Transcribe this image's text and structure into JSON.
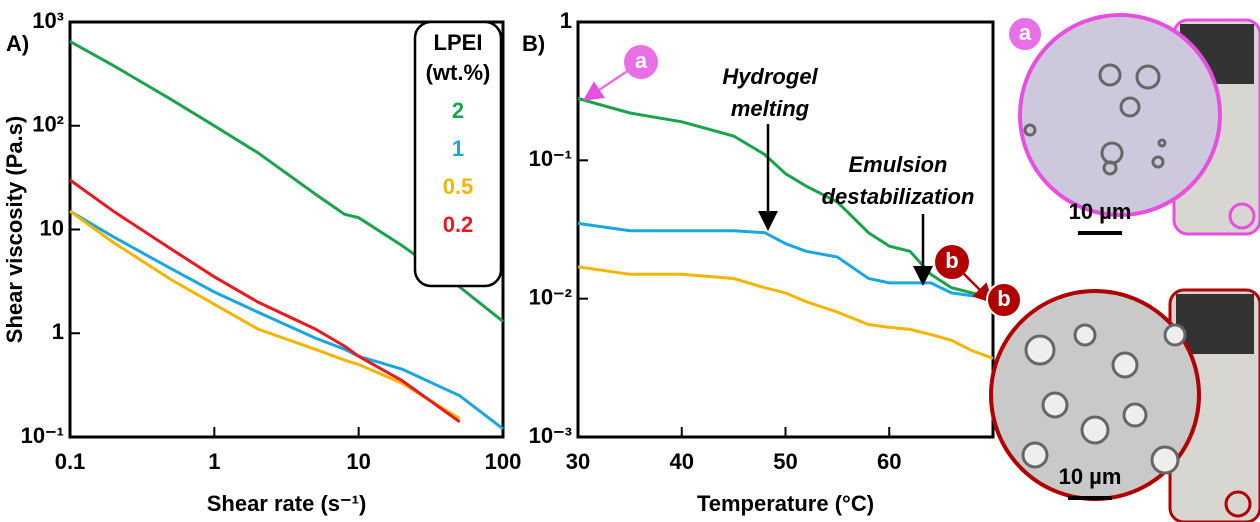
{
  "chart_data": [
    {
      "type": "line",
      "panel_label": "A)",
      "x_label": "Shear rate (s⁻¹)",
      "y_label": "Shear viscosity (Pa.s)",
      "xlog": true,
      "ylog": true,
      "xlim": [
        0.1,
        100
      ],
      "ylim": [
        0.1,
        1000
      ],
      "xticks": [
        0.1,
        1,
        10,
        100
      ],
      "yticks": [
        {
          "value": 1000,
          "label": "10³"
        },
        {
          "value": 100,
          "label": "10²"
        },
        10,
        1,
        {
          "value": 0.1,
          "label": "10⁻¹"
        }
      ],
      "legend_title": [
        "LPEI",
        "(wt.%)"
      ],
      "legend": "top right",
      "x": [
        0.1,
        0.2,
        0.5,
        1,
        2,
        5,
        8,
        10,
        20,
        50,
        100
      ],
      "series": [
        {
          "name": "2",
          "color": "#1aa34a",
          "values": [
            650,
            380,
            180,
            100,
            55,
            22,
            14,
            13,
            7,
            2.8,
            1.3
          ]
        },
        {
          "name": "1",
          "color": "#1aa7e0",
          "values": [
            15,
            8.5,
            4.2,
            2.5,
            1.6,
            0.9,
            0.7,
            0.6,
            0.45,
            0.25,
            0.12
          ]
        },
        {
          "name": "0.5",
          "color": "#f5b400",
          "values": [
            15,
            7.5,
            3.3,
            1.9,
            1.1,
            0.7,
            0.55,
            0.5,
            0.33,
            0.15,
            null
          ]
        },
        {
          "name": "0.2",
          "color": "#e8191f",
          "values": [
            30,
            15,
            6.5,
            3.5,
            2,
            1.1,
            0.75,
            0.6,
            0.35,
            0.14,
            null
          ]
        }
      ]
    },
    {
      "type": "line",
      "panel_label": "B)",
      "x_label": "Temperature (°C)",
      "xlog": false,
      "ylog": true,
      "xlim": [
        30,
        70
      ],
      "ylim": [
        0.001,
        1
      ],
      "xticks": [
        30,
        40,
        50,
        60
      ],
      "yticks": [
        1,
        {
          "value": 0.1,
          "label": "10⁻¹"
        },
        {
          "value": 0.01,
          "label": "10⁻²"
        },
        {
          "value": 0.001,
          "label": "10⁻³"
        }
      ],
      "x": [
        30,
        35,
        40,
        45,
        48,
        50,
        52,
        55,
        58,
        60,
        62,
        64,
        66,
        68,
        70
      ],
      "series": [
        {
          "color": "#1aa34a",
          "values": [
            0.28,
            0.22,
            0.19,
            0.15,
            0.11,
            0.08,
            0.065,
            0.05,
            0.03,
            0.024,
            0.022,
            0.015,
            0.012,
            0.011,
            0.01
          ]
        },
        {
          "color": "#1aa7e0",
          "values": [
            0.035,
            0.031,
            0.031,
            0.031,
            0.03,
            0.025,
            0.022,
            0.02,
            0.014,
            0.013,
            0.013,
            0.013,
            0.011,
            0.0105,
            0.0103
          ]
        },
        {
          "color": "#f5b400",
          "values": [
            0.017,
            0.015,
            0.015,
            0.014,
            0.012,
            0.011,
            0.0095,
            0.008,
            0.0065,
            0.0062,
            0.006,
            0.0055,
            0.005,
            0.0042,
            0.0037
          ]
        }
      ],
      "annotations": [
        [
          "Hydrogel",
          "melting"
        ],
        [
          "Emulsion",
          "destabilization"
        ]
      ],
      "markers": [
        "a",
        "b"
      ]
    }
  ],
  "images": [
    {
      "label": "a",
      "scale": "10 µm"
    },
    {
      "label": "b",
      "scale": "10 µm"
    }
  ]
}
